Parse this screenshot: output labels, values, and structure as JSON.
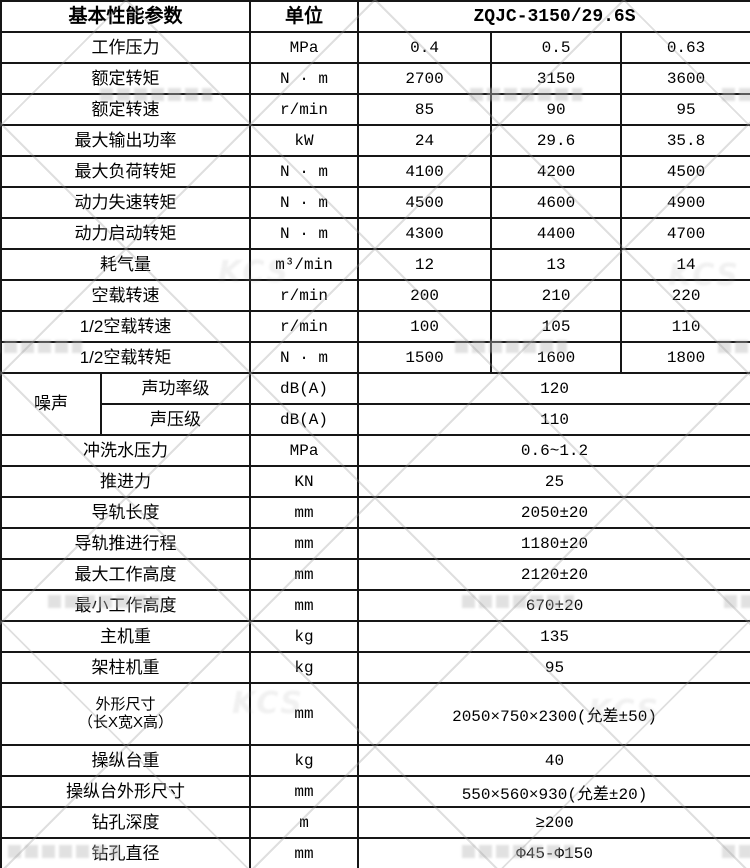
{
  "header": {
    "param_title": "基本性能参数",
    "unit_title": "单位",
    "model": "ZQJC-3150/29.6S"
  },
  "watermark": {
    "logo_text": "KCS"
  },
  "rows": [
    {
      "label": "工作压力",
      "unit": "MPa",
      "values": [
        "0.4",
        "0.5",
        "0.63"
      ]
    },
    {
      "label": "额定转矩",
      "unit": "N · m",
      "values": [
        "2700",
        "3150",
        "3600"
      ]
    },
    {
      "label": "额定转速",
      "unit": "r/min",
      "values": [
        "85",
        "90",
        "95"
      ]
    },
    {
      "label": "最大输出功率",
      "unit": "kW",
      "values": [
        "24",
        "29.6",
        "35.8"
      ]
    },
    {
      "label": "最大负荷转矩",
      "unit": "N · m",
      "values": [
        "4100",
        "4200",
        "4500"
      ]
    },
    {
      "label": "动力失速转矩",
      "unit": "N · m",
      "values": [
        "4500",
        "4600",
        "4900"
      ]
    },
    {
      "label": "动力启动转矩",
      "unit": "N · m",
      "values": [
        "4300",
        "4400",
        "4700"
      ]
    },
    {
      "label": "耗气量",
      "unit": "m³/min",
      "values": [
        "12",
        "13",
        "14"
      ]
    },
    {
      "label": "空载转速",
      "unit": "r/min",
      "values": [
        "200",
        "210",
        "220"
      ]
    },
    {
      "label": "1/2空载转速",
      "unit": "r/min",
      "values": [
        "100",
        "105",
        "110"
      ]
    },
    {
      "label": "1/2空载转矩",
      "unit": "N · m",
      "values": [
        "1500",
        "1600",
        "1800"
      ]
    },
    {
      "group": "噪声",
      "group_rowspan": 2,
      "label": "声功率级",
      "unit": "dB(A)",
      "value": "120"
    },
    {
      "group_member": true,
      "label": "声压级",
      "unit": "dB(A)",
      "value": "110"
    },
    {
      "label": "冲洗水压力",
      "unit": "MPa",
      "value": "0.6~1.2"
    },
    {
      "label": "推进力",
      "unit": "KN",
      "value": "25"
    },
    {
      "label": "导轨长度",
      "unit": "mm",
      "value": "2050±20"
    },
    {
      "label": "导轨推进行程",
      "unit": "mm",
      "value": "1180±20"
    },
    {
      "label": "最大工作高度",
      "unit": "mm",
      "value": "2120±20"
    },
    {
      "label": "最小工作高度",
      "unit": "mm",
      "value": "670±20"
    },
    {
      "label": "主机重",
      "unit": "kg",
      "value": "135"
    },
    {
      "label": "架柱机重",
      "unit": "kg",
      "value": "95"
    },
    {
      "label": "外形尺寸",
      "label2": "（长X宽X高）",
      "unit": "mm",
      "value": "2050×750×2300(允差±50)",
      "tall": true
    },
    {
      "label": "操纵台重",
      "unit": "kg",
      "value": "40"
    },
    {
      "label": "操纵台外形尺寸",
      "unit": "mm",
      "value": "550×560×930(允差±20)"
    },
    {
      "label": "钻孔深度",
      "unit": "m",
      "value": "≥200"
    },
    {
      "label": "钻孔直径",
      "unit": "mm",
      "value": "Φ45-Φ150"
    }
  ]
}
